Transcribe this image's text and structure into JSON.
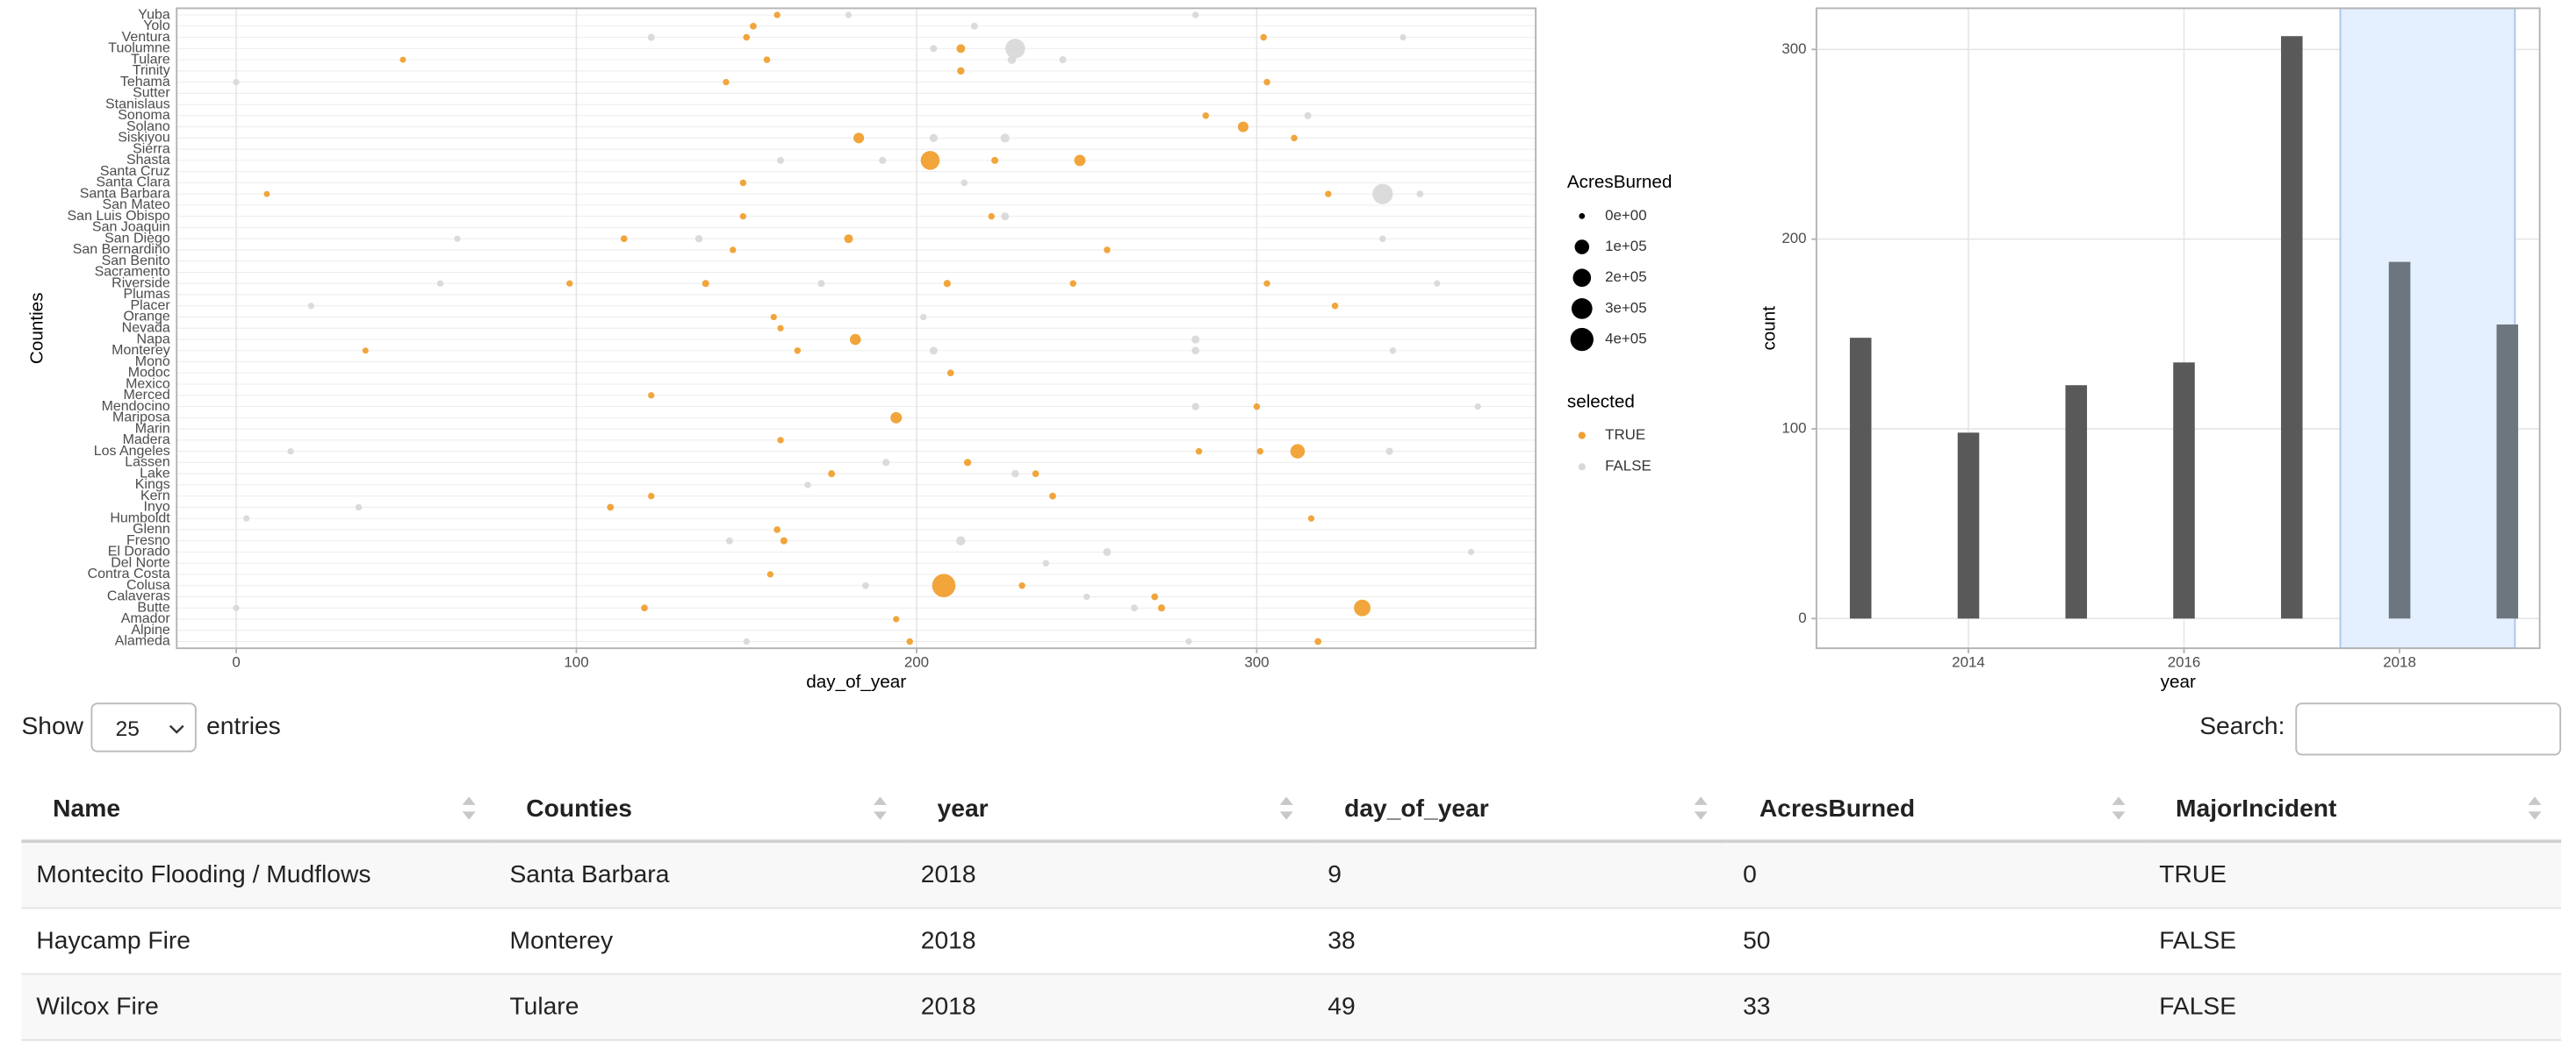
{
  "chart_data": [
    {
      "type": "scatter",
      "x_label": "day_of_year",
      "y_label": "Counties",
      "categories": [
        "Alameda",
        "Alpine",
        "Amador",
        "Butte",
        "Calaveras",
        "Colusa",
        "Contra Costa",
        "Del Norte",
        "El Dorado",
        "Fresno",
        "Glenn",
        "Humboldt",
        "Inyo",
        "Kern",
        "Kings",
        "Lake",
        "Lassen",
        "Los Angeles",
        "Madera",
        "Marin",
        "Mariposa",
        "Mendocino",
        "Merced",
        "Mexico",
        "Modoc",
        "Mono",
        "Monterey",
        "Napa",
        "Nevada",
        "Orange",
        "Placer",
        "Plumas",
        "Riverside",
        "Sacramento",
        "San Benito",
        "San Bernardino",
        "San Diego",
        "San Joaquin",
        "San Luis Obispo",
        "San Mateo",
        "Santa Barbara",
        "Santa Clara",
        "Santa Cruz",
        "Shasta",
        "Sierra",
        "Siskiyou",
        "Solano",
        "Sonoma",
        "Stanislaus",
        "Sutter",
        "Tehama",
        "Trinity",
        "Tulare",
        "Tuolumne",
        "Ventura",
        "Yolo",
        "Yuba"
      ],
      "xlim": [
        -17.5,
        382
      ],
      "xticks": [
        0,
        100,
        200,
        300
      ],
      "grid": true,
      "series": [
        {
          "name": "FALSE",
          "color": "#d9d9d9",
          "x": [
            150,
            280,
            0,
            264,
            250,
            185,
            238,
            256,
            363,
            213,
            145,
            3,
            36,
            168,
            229,
            191,
            16,
            339,
            282,
            365,
            205,
            282,
            340,
            282,
            202,
            22,
            60,
            172,
            353,
            65,
            136,
            337,
            226,
            337,
            348,
            214,
            160,
            190,
            205,
            226,
            315,
            0,
            228,
            243,
            229,
            205,
            122,
            343,
            217,
            180,
            282
          ],
          "y": [
            "Alameda",
            "Alameda",
            "Butte",
            "Butte",
            "Calaveras",
            "Colusa",
            "Del Norte",
            "El Dorado",
            "El Dorado",
            "Fresno",
            "Fresno",
            "Humboldt",
            "Inyo",
            "Kings",
            "Lake",
            "Lassen",
            "Los Angeles",
            "Los Angeles",
            "Mendocino",
            "Mendocino",
            "Monterey",
            "Monterey",
            "Monterey",
            "Napa",
            "Orange",
            "Placer",
            "Riverside",
            "Riverside",
            "Riverside",
            "San Diego",
            "San Diego",
            "San Diego",
            "San Luis Obispo",
            "Santa Barbara",
            "Santa Barbara",
            "Santa Clara",
            "Shasta",
            "Shasta",
            "Siskiyou",
            "Siskiyou",
            "Sonoma",
            "Tehama",
            "Tulare",
            "Tulare",
            "Tuolumne",
            "Tuolumne",
            "Ventura",
            "Ventura",
            "Yolo",
            "Yuba",
            "Yuba"
          ],
          "size": [
            300,
            200,
            300,
            1500,
            400,
            1000,
            500,
            5000,
            300,
            15000,
            1500,
            200,
            800,
            300,
            3000,
            2000,
            300,
            2000,
            3000,
            200,
            5000,
            4000,
            500,
            6000,
            300,
            300,
            300,
            1500,
            300,
            300,
            3000,
            500,
            5000,
            281893,
            1000,
            800,
            1500,
            2000,
            6000,
            12000,
            1500,
            300,
            8000,
            2000,
            257314,
            1500,
            2000,
            300,
            1500,
            300,
            500
          ]
        },
        {
          "name": "TRUE",
          "color": "#f0a030",
          "x": [
            198,
            318,
            194,
            120,
            272,
            331,
            270,
            208,
            231,
            157,
            161,
            159,
            316,
            110,
            122,
            240,
            175,
            235,
            215,
            312,
            283,
            301,
            160,
            194,
            300,
            122,
            210,
            38,
            165,
            182,
            160,
            158,
            323,
            98,
            138,
            209,
            246,
            303,
            146,
            256,
            114,
            180,
            149,
            222,
            9,
            321,
            149,
            204,
            248,
            223,
            183,
            311,
            296,
            285,
            144,
            303,
            213,
            49,
            156,
            213,
            150,
            302,
            152,
            159
          ],
          "y": [
            "Alameda",
            "Alameda",
            "Amador",
            "Butte",
            "Butte",
            "Butte",
            "Calaveras",
            "Colusa",
            "Colusa",
            "Contra Costa",
            "Fresno",
            "Glenn",
            "Humboldt",
            "Inyo",
            "Kern",
            "Kern",
            "Lake",
            "Lake",
            "Lassen",
            "Los Angeles",
            "Los Angeles",
            "Los Angeles",
            "Madera",
            "Mariposa",
            "Mendocino",
            "Merced",
            "Modoc",
            "Monterey",
            "Monterey",
            "Napa",
            "Nevada",
            "Orange",
            "Placer",
            "Riverside",
            "Riverside",
            "Riverside",
            "Riverside",
            "Riverside",
            "San Bernardino",
            "San Bernardino",
            "San Diego",
            "San Diego",
            "San Luis Obispo",
            "San Luis Obispo",
            "Santa Barbara",
            "Santa Barbara",
            "Santa Clara",
            "Shasta",
            "Shasta",
            "Shasta",
            "Siskiyou",
            "Siskiyou",
            "Solano",
            "Sonoma",
            "Tehama",
            "Tehama",
            "Trinity",
            "Tulare",
            "Tulare",
            "Tuolumne",
            "Ventura",
            "Ventura",
            "Yolo",
            "Yuba"
          ],
          "size": [
            500,
            1000,
            200,
            1000,
            2000,
            153000,
            1000,
            410000,
            500,
            300,
            2000,
            800,
            300,
            1000,
            500,
            1200,
            1500,
            800,
            2000,
            97000,
            500,
            400,
            300,
            40000,
            500,
            300,
            1000,
            50,
            500,
            35000,
            200,
            300,
            500,
            300,
            1500,
            2000,
            500,
            300,
            400,
            600,
            1000,
            11000,
            300,
            400,
            0,
            400,
            500,
            229651,
            39000,
            1500,
            30000,
            600,
            30000,
            400,
            300,
            600,
            3000,
            33,
            600,
            10000,
            800,
            600,
            1000,
            400
          ]
        }
      ],
      "size_legend": {
        "title": "AcresBurned",
        "breaks": [
          {
            "value": 0,
            "label": "0e+00"
          },
          {
            "value": 100000,
            "label": "1e+05"
          },
          {
            "value": 200000,
            "label": "2e+05"
          },
          {
            "value": 300000,
            "label": "3e+05"
          },
          {
            "value": 400000,
            "label": "4e+05"
          }
        ]
      },
      "color_legend_title": "selected"
    },
    {
      "type": "bar",
      "x_label": "year",
      "y_label": "count",
      "x": [
        2013,
        2014,
        2015,
        2016,
        2017,
        2018,
        2019
      ],
      "values": [
        148,
        98,
        123,
        135,
        307,
        188,
        155
      ],
      "xlim": [
        2012.59,
        2019.3
      ],
      "xticks": [
        2014,
        2016,
        2018
      ],
      "ylim": [
        -15.65,
        321.7
      ],
      "yticks": [
        0,
        100,
        200,
        300
      ],
      "grid": true,
      "color": "#595959",
      "selected_color": "#6d757e",
      "brush": [
        2017.45,
        2019.07
      ],
      "brush_color": "#e4efff"
    }
  ],
  "table": {
    "length_label_before": "Show",
    "length_value": "25",
    "length_label_after": "entries",
    "search_label": "Search:",
    "columns": [
      "Name",
      "Counties",
      "year",
      "day_of_year",
      "AcresBurned",
      "MajorIncident"
    ],
    "rows": [
      [
        "Montecito Flooding / Mudflows",
        "Santa Barbara",
        2018,
        9,
        0,
        "TRUE"
      ],
      [
        "Haycamp Fire",
        "Monterey",
        2018,
        38,
        50,
        "FALSE"
      ],
      [
        "Wilcox Fire",
        "Tulare",
        2018,
        49,
        33,
        "FALSE"
      ]
    ]
  }
}
